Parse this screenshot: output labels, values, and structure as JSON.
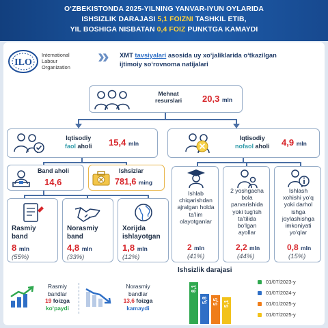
{
  "header": {
    "line1": "O‘ZBEKISTONDA 2025-YILNING YANVAR-IYUN OYLARIDA",
    "line2_a": "ISHSIZLIK DARAJASI ",
    "line2_b": "5,1 FOIZNI",
    "line2_c": " TASHKIL ETIB,",
    "line3_a": "YIL BOSHIGA NISBATAN ",
    "line3_b": "0,4 FOIZ",
    "line3_c": " PUNKTGA KAMAYDI"
  },
  "logo": {
    "text1": "International",
    "text2": "Labour",
    "text3": "Organization"
  },
  "intro": {
    "t1": "XMT ",
    "t2": "tavsiyalari",
    "t3": " asosida uy xo‘jaliklarida o‘tkazilgan",
    "line2": "ijtimoiy so‘rovnoma natijalari"
  },
  "labor": {
    "label1": "Mehnat",
    "label2": "resurslari",
    "value": "20,3",
    "unit": "mln"
  },
  "active": {
    "label1": "Iqtisodiy",
    "label2a": "faol",
    "label2b": " aholi",
    "value": "15,4",
    "unit": "mln"
  },
  "inactive": {
    "label1": "Iqtisodiy",
    "label2a": "nofaol",
    "label2b": " aholi",
    "value": "4,9",
    "unit": "mln"
  },
  "employed": {
    "label": "Band aholi",
    "value": "14,6"
  },
  "unemployed": {
    "label": "Ishsizlar",
    "value": "781,6",
    "unit": "ming"
  },
  "formal": {
    "label1": "Rasmiy",
    "label2": "band",
    "value": "8",
    "unit": "mln",
    "share": "(55%)"
  },
  "informal": {
    "label1": "Norasmiy",
    "label2": "band",
    "value": "4,8",
    "unit": "mln",
    "share": "(33%)"
  },
  "abroad": {
    "label1": "Xorijda",
    "label2": "ishlayotgan",
    "value": "1,8",
    "unit": "mln",
    "share": "(12%)"
  },
  "study": {
    "lines": [
      "Ishlab",
      "chiqarishdan",
      "ajralgan holda",
      "ta’lim",
      "olayotganlar"
    ],
    "value": "2",
    "unit": "mln",
    "share": "(41%)"
  },
  "care": {
    "lines": [
      "2 yoshgacha",
      "bola",
      "parvarishida",
      "yoki tug‘ish",
      "ta’tilida",
      "bo‘lgan",
      "ayollar"
    ],
    "value": "2,2",
    "unit": "mln",
    "share": "(44%)"
  },
  "unwilling": {
    "lines": [
      "Ishlash",
      "xohishi yo‘q",
      "yoki darhol",
      "ishga",
      "joylashishga",
      "imkoniyati",
      "yo‘qlar"
    ],
    "value": "0,8",
    "unit": "mln",
    "share": "(15%)"
  },
  "formal_change": {
    "l1": "Rasmiy",
    "l2": "bandlar",
    "l3a": "19",
    "l3b": " foizga",
    "l4": "ko‘paydi"
  },
  "informal_change": {
    "l1": "Norasmiy",
    "l2": "bandlar",
    "l3a": "13,6",
    "l3b": " foizga",
    "l4": "kamaydi"
  },
  "chart_data": {
    "type": "bar",
    "title": "Ishsizlik darajasi",
    "categories": [
      "01/07/2023-y",
      "01/07/2024-y",
      "01/01/2025-y",
      "01/07/2025-y"
    ],
    "values": [
      8.1,
      5.8,
      5.5,
      5.1
    ],
    "value_labels": [
      "8,1",
      "5,8",
      "5,5",
      "5,1"
    ],
    "colors": [
      "#2fa84f",
      "#2f6fc6",
      "#ef7d1a",
      "#f2c21b"
    ],
    "ylim": [
      0,
      9
    ],
    "legend": "right"
  }
}
